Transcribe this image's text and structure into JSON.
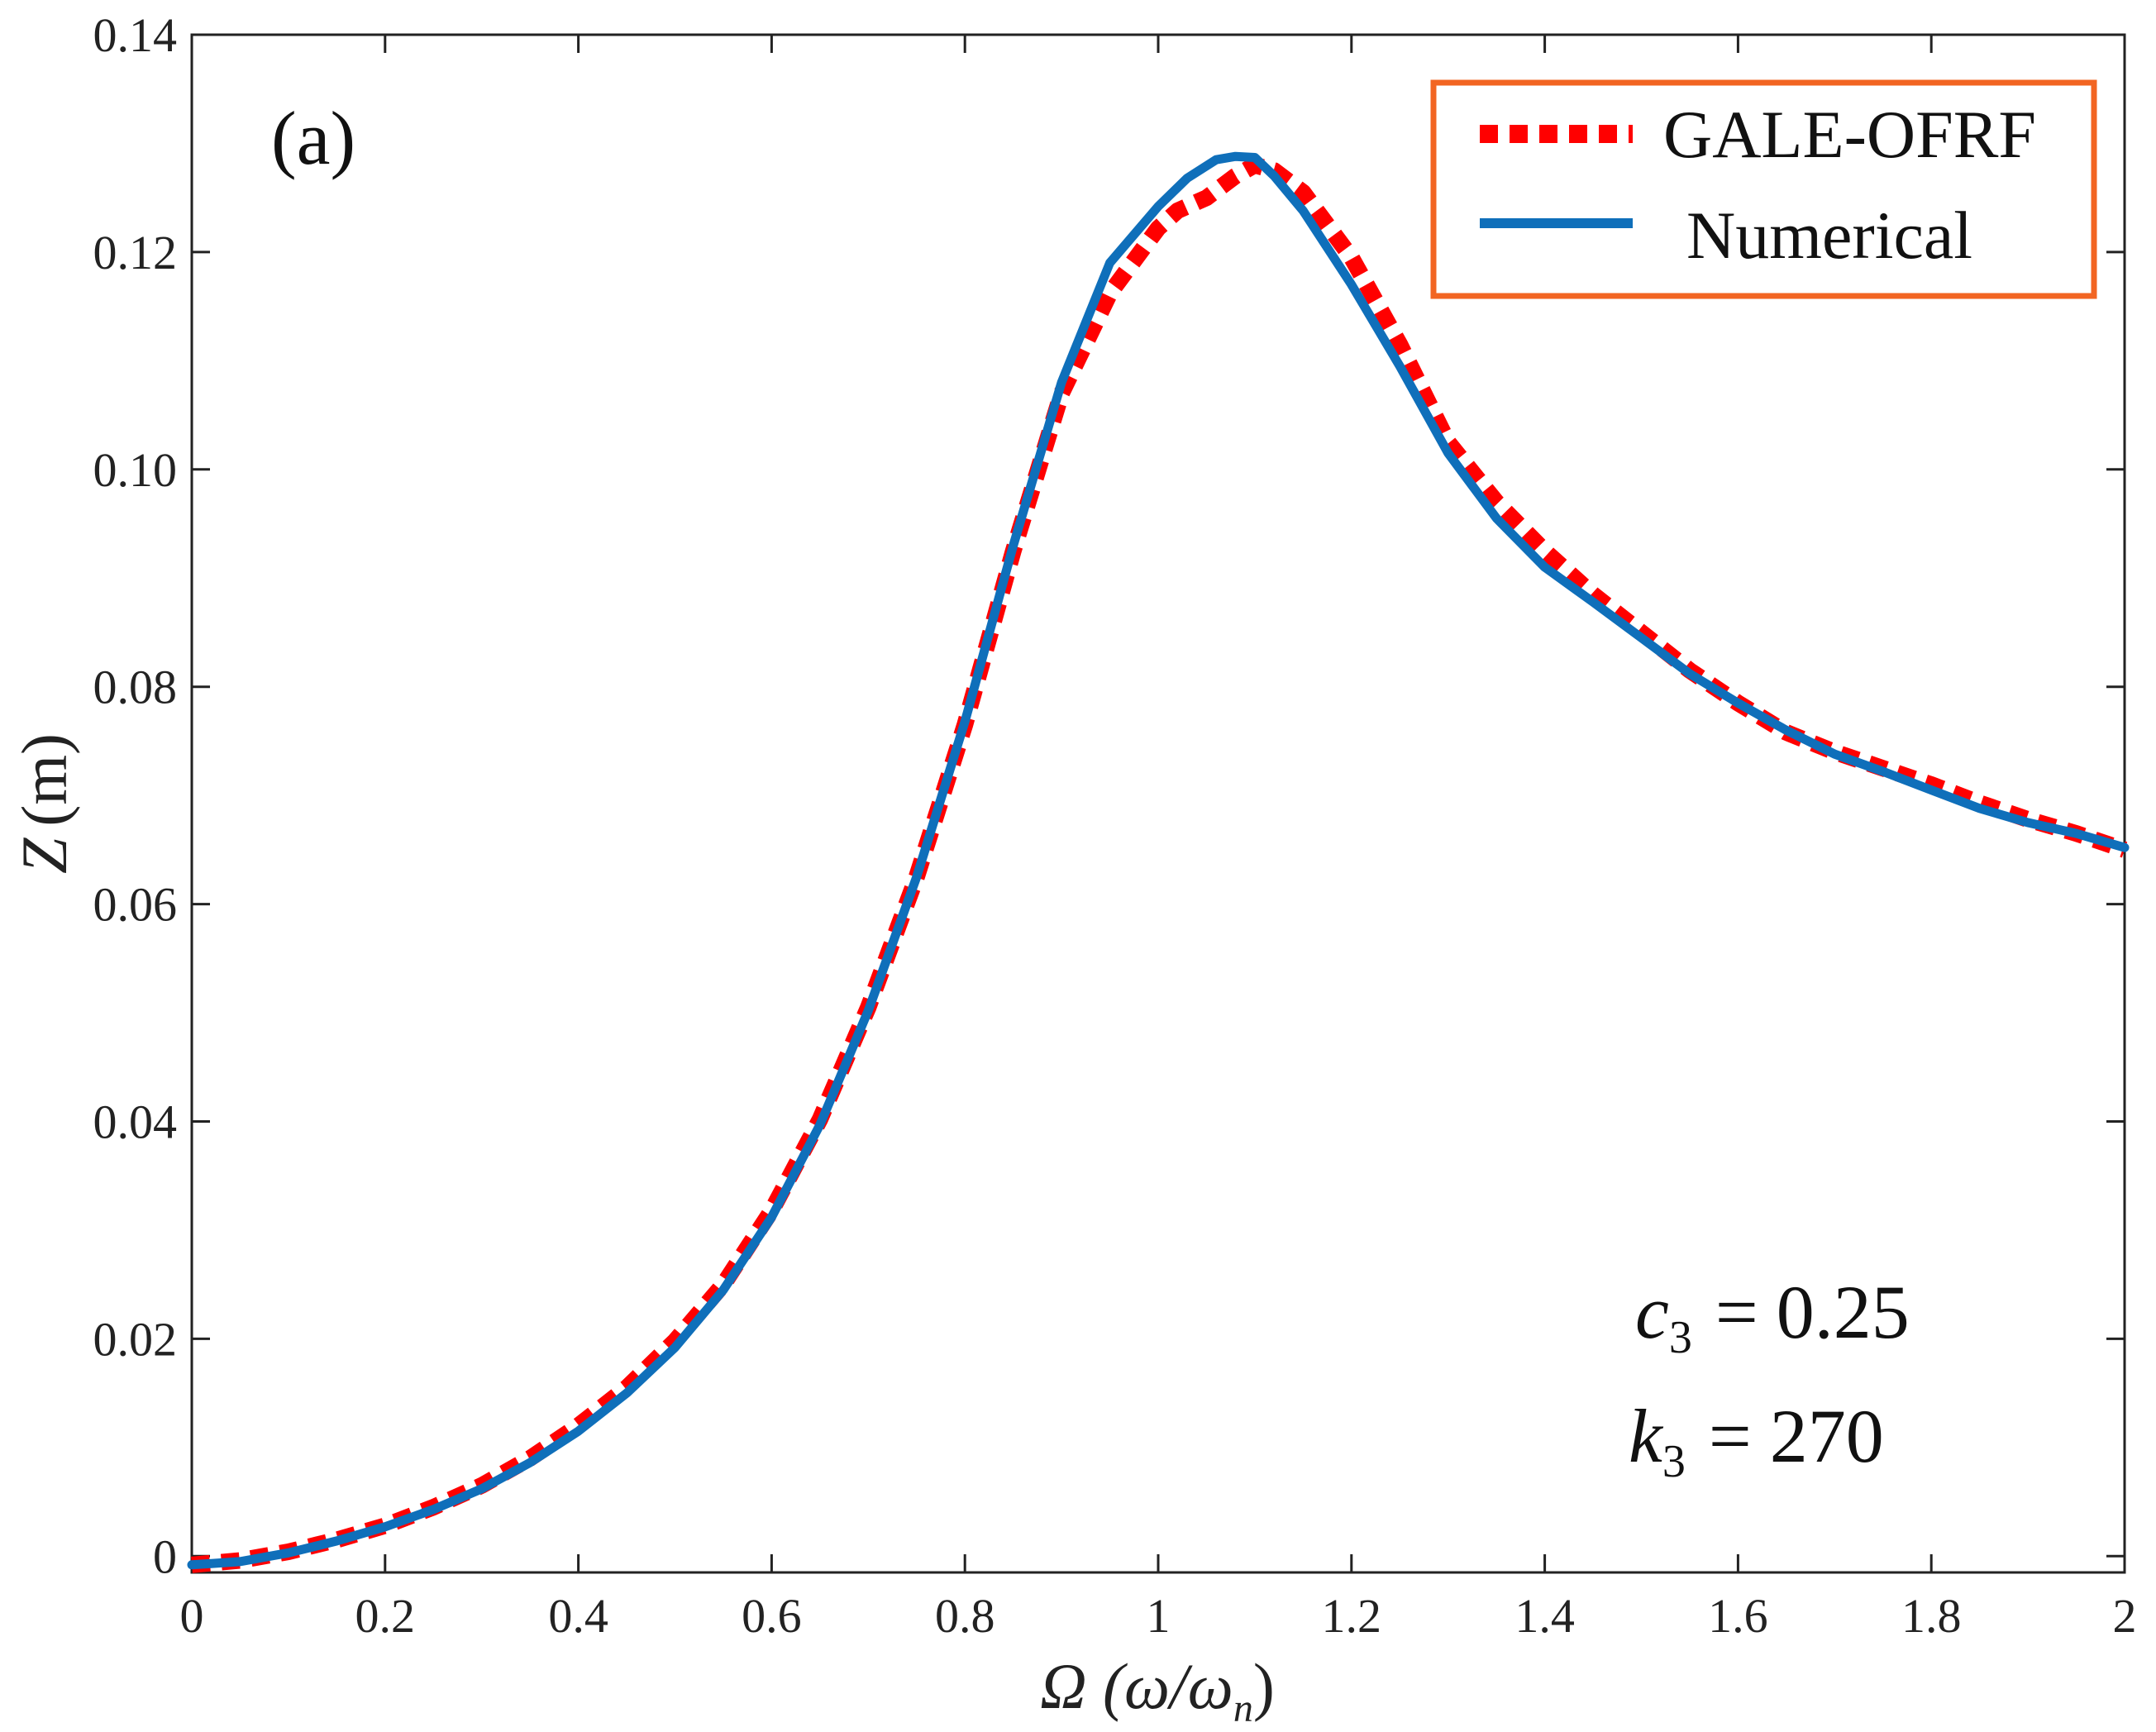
{
  "chart_data": {
    "type": "line",
    "panel_label": "(a)",
    "title": "",
    "xlabel": {
      "main": "Ω (ω/ω",
      "sub": "n",
      "close": ")"
    },
    "ylabel": {
      "main": "Z",
      "rest": "(m)"
    },
    "xlim": [
      0,
      2
    ],
    "ylim": [
      -0.0015,
      0.14
    ],
    "xticks": [
      0,
      0.2,
      0.4,
      0.6,
      0.8,
      1,
      1.2,
      1.4,
      1.6,
      1.8,
      2
    ],
    "xtick_labels": [
      "0",
      "0.2",
      "0.4",
      "0.6",
      "0.8",
      "1",
      "1.2",
      "1.4",
      "1.6",
      "1.8",
      "2"
    ],
    "yticks": [
      0,
      0.02,
      0.04,
      0.06,
      0.08,
      0.1,
      0.12,
      0.14
    ],
    "ytick_labels": [
      "0",
      "0.02",
      "0.04",
      "0.06",
      "0.08",
      "0.10",
      "0.12",
      "0.14"
    ],
    "grid": false,
    "legend_position": "top-right",
    "legend_border_color": "#f26522",
    "series": [
      {
        "name": "GALE-OFRF",
        "style": "dotted",
        "color": "#ff0000",
        "x": [
          0,
          0.05,
          0.1,
          0.15,
          0.2,
          0.25,
          0.3,
          0.35,
          0.4,
          0.45,
          0.5,
          0.55,
          0.6,
          0.65,
          0.7,
          0.75,
          0.8,
          0.85,
          0.9,
          0.95,
          1.0,
          1.02,
          1.05,
          1.08,
          1.1,
          1.12,
          1.15,
          1.2,
          1.25,
          1.3,
          1.35,
          1.4,
          1.45,
          1.5,
          1.55,
          1.6,
          1.65,
          1.7,
          1.75,
          1.8,
          1.85,
          1.9,
          1.95,
          2.0
        ],
        "y": [
          -0.0008,
          -0.0004,
          0.0004,
          0.0015,
          0.0028,
          0.0045,
          0.0065,
          0.009,
          0.012,
          0.0155,
          0.0198,
          0.025,
          0.0318,
          0.0402,
          0.0505,
          0.0625,
          0.0765,
          0.0925,
          0.107,
          0.1162,
          0.1222,
          0.1238,
          0.125,
          0.127,
          0.128,
          0.1275,
          0.1255,
          0.1195,
          0.1115,
          0.1025,
          0.097,
          0.0925,
          0.0885,
          0.085,
          0.0815,
          0.0785,
          0.0758,
          0.074,
          0.0725,
          0.071,
          0.0693,
          0.0678,
          0.0665,
          0.065
        ]
      },
      {
        "name": "Numerical",
        "style": "solid",
        "color": "#0f6fba",
        "x": [
          0,
          0.05,
          0.1,
          0.15,
          0.2,
          0.25,
          0.3,
          0.35,
          0.4,
          0.45,
          0.5,
          0.55,
          0.6,
          0.65,
          0.7,
          0.75,
          0.8,
          0.85,
          0.9,
          0.95,
          1.0,
          1.03,
          1.06,
          1.08,
          1.1,
          1.12,
          1.15,
          1.2,
          1.25,
          1.3,
          1.35,
          1.4,
          1.45,
          1.5,
          1.55,
          1.6,
          1.65,
          1.7,
          1.75,
          1.8,
          1.85,
          1.9,
          1.95,
          2.0
        ],
        "y": [
          -0.0008,
          -0.0005,
          0.0003,
          0.0014,
          0.0027,
          0.0043,
          0.0062,
          0.0086,
          0.0115,
          0.015,
          0.0192,
          0.0245,
          0.0312,
          0.0397,
          0.0502,
          0.0625,
          0.0768,
          0.093,
          0.108,
          0.119,
          0.1242,
          0.1268,
          0.1285,
          0.1288,
          0.1287,
          0.127,
          0.1238,
          0.117,
          0.1095,
          0.1015,
          0.0955,
          0.091,
          0.0878,
          0.0845,
          0.0812,
          0.0785,
          0.076,
          0.0738,
          0.0722,
          0.0705,
          0.0688,
          0.0675,
          0.0665,
          0.0652
        ]
      }
    ],
    "annotations": [
      {
        "var": "c",
        "sub": "3",
        "op": "=",
        "value": "0.25"
      },
      {
        "var": "k",
        "sub": "3",
        "op": "=",
        "value": "270"
      }
    ]
  }
}
